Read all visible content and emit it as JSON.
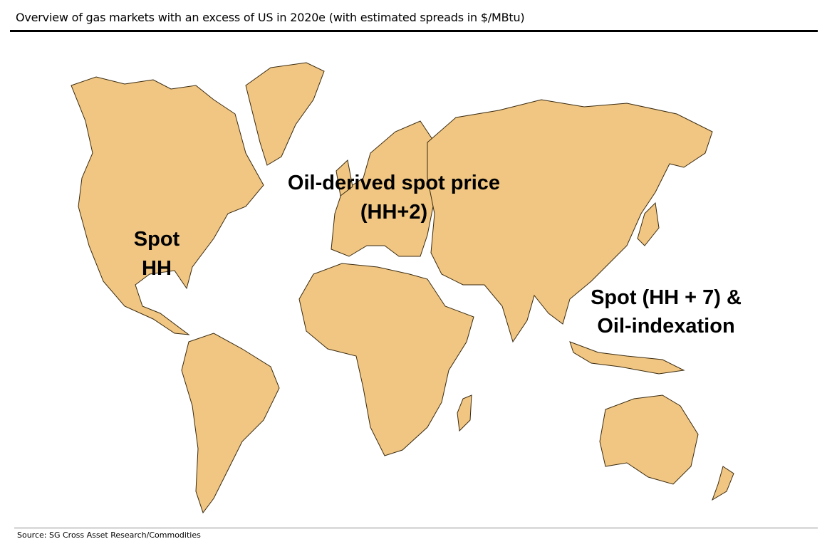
{
  "title": "Overview of gas markets with an excess of US in 2020e (with estimated spreads in $/MBtu)",
  "land_color": "#f0c682",
  "labels": {
    "europe_line1": "Oil-derived spot price",
    "europe_line2": "(HH+2)",
    "us_line1": "Spot",
    "us_line2": "HH",
    "asia_line1": "Spot (HH + 7) &",
    "asia_line2": "Oil-indexation"
  },
  "source": "Source: SG Cross Asset Research/Commodities"
}
